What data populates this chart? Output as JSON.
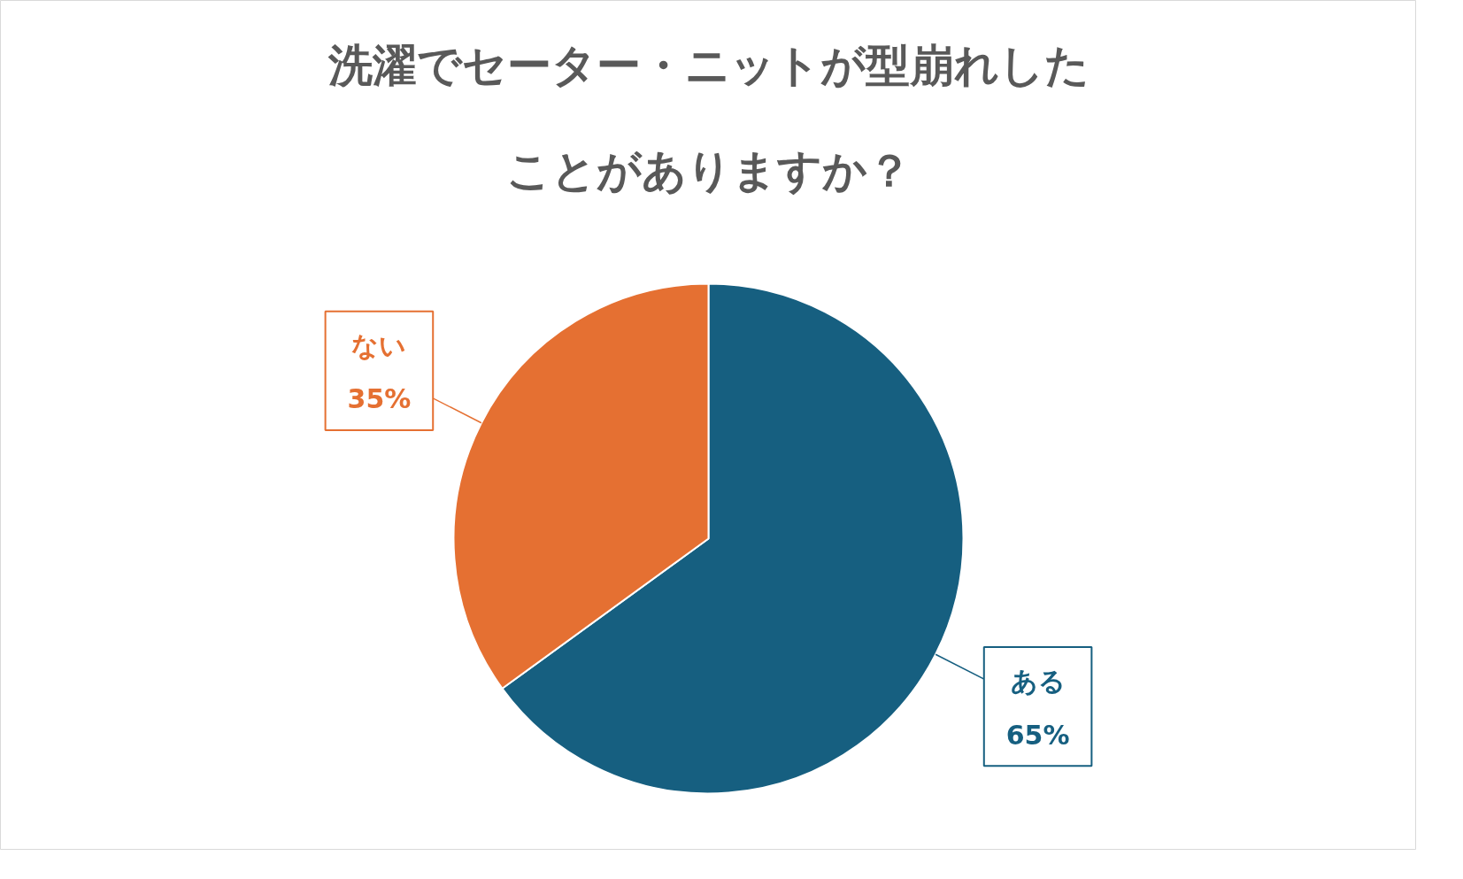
{
  "chart_data": {
    "type": "pie",
    "title": "洗濯でセーター・ニットが型崩れしたことがありますか？",
    "categories": [
      "ある",
      "ない"
    ],
    "values": [
      65,
      35
    ],
    "colors": [
      "#165f80",
      "#e57032"
    ],
    "value_labels": [
      "65%",
      "35%"
    ]
  }
}
